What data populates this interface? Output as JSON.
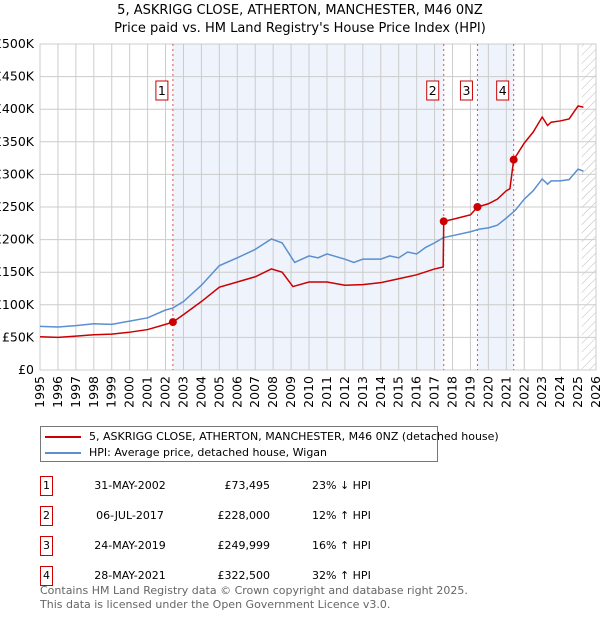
{
  "chart_data": {
    "type": "line",
    "title": "5, ASKRIGG CLOSE, ATHERTON, MANCHESTER, M46 0NZ",
    "subtitle": "Price paid vs. HM Land Registry's House Price Index (HPI)",
    "xlim": [
      1995,
      2026
    ],
    "ylim": [
      0,
      500000
    ],
    "x_ticks": [
      "1995",
      "1996",
      "1997",
      "1998",
      "1999",
      "2000",
      "2001",
      "2002",
      "2003",
      "2004",
      "2005",
      "2006",
      "2007",
      "2008",
      "2009",
      "2010",
      "2011",
      "2012",
      "2013",
      "2014",
      "2015",
      "2016",
      "2017",
      "2018",
      "2019",
      "2020",
      "2021",
      "2022",
      "2023",
      "2024",
      "2025",
      "2026"
    ],
    "y_ticks": [
      {
        "v": 0,
        "label": "£0"
      },
      {
        "v": 50000,
        "label": "£50K"
      },
      {
        "v": 100000,
        "label": "£100K"
      },
      {
        "v": 150000,
        "label": "£150K"
      },
      {
        "v": 200000,
        "label": "£200K"
      },
      {
        "v": 250000,
        "label": "£250K"
      },
      {
        "v": 300000,
        "label": "£300K"
      },
      {
        "v": 350000,
        "label": "£350K"
      },
      {
        "v": 400000,
        "label": "£400K"
      },
      {
        "v": 450000,
        "label": "£450K"
      },
      {
        "v": 500000,
        "label": "£500K"
      }
    ],
    "grid": true,
    "shaded_periods": [
      [
        2002.41,
        2017.51
      ],
      [
        2019.39,
        2021.41
      ]
    ],
    "forecast_hatch_from": 2025.2,
    "series": [
      {
        "name": "5, ASKRIGG CLOSE, ATHERTON, MANCHESTER, M46 0NZ (detached house)",
        "color": "#cc0000",
        "x": [
          1995,
          1996,
          1997,
          1998,
          1999,
          2000,
          2001,
          2002,
          2002.41,
          2003,
          2004,
          2005,
          2006,
          2007,
          2007.9,
          2008.5,
          2009.1,
          2010,
          2011,
          2012,
          2013,
          2014,
          2015,
          2016,
          2017,
          2017.48,
          2017.51,
          2018,
          2019,
          2019.39,
          2020,
          2020.5,
          2021,
          2021.2,
          2021.41,
          2022,
          2022.5,
          2023,
          2023.3,
          2023.5,
          2024,
          2024.5,
          2025,
          2025.3
        ],
        "y": [
          51000,
          50000,
          52000,
          54000,
          55000,
          58000,
          62000,
          70000,
          73495,
          85000,
          105000,
          127000,
          135000,
          143000,
          155000,
          150000,
          128000,
          135000,
          135000,
          130000,
          131000,
          134000,
          140000,
          146000,
          155000,
          158000,
          228000,
          231000,
          238000,
          249999,
          255000,
          262000,
          275000,
          278000,
          322500,
          348000,
          365000,
          388000,
          375000,
          380000,
          382000,
          385000,
          405000,
          403000
        ]
      },
      {
        "name": "HPI: Average price, detached house, Wigan",
        "color": "#5b8fd0",
        "x": [
          1995,
          1996,
          1997,
          1998,
          1999,
          2000,
          2001,
          2002,
          2002.4,
          2003,
          2004,
          2005,
          2006,
          2007,
          2007.9,
          2008.5,
          2009.2,
          2010,
          2010.5,
          2011,
          2012,
          2012.5,
          2013,
          2014,
          2014.5,
          2015,
          2015.5,
          2016,
          2016.5,
          2017,
          2017.5,
          2018,
          2019,
          2019.5,
          2020,
          2020.5,
          2021,
          2021.5,
          2022,
          2022.5,
          2023,
          2023.3,
          2023.5,
          2024,
          2024.5,
          2025,
          2025.3
        ],
        "y": [
          67000,
          66000,
          68000,
          71000,
          70000,
          75000,
          80000,
          92000,
          95000,
          105000,
          130000,
          160000,
          172000,
          185000,
          201000,
          195000,
          165000,
          175000,
          172000,
          178000,
          170000,
          165000,
          170000,
          170000,
          175000,
          172000,
          181000,
          178000,
          188000,
          195000,
          203000,
          206000,
          212000,
          216000,
          218000,
          222000,
          233000,
          245000,
          262000,
          275000,
          293000,
          285000,
          290000,
          290000,
          292000,
          308000,
          305000
        ]
      }
    ],
    "sales": [
      {
        "n": "1",
        "date": "31-MAY-2002",
        "price": "£73,495",
        "hpi": "23% ↓ HPI",
        "x": 2002.41,
        "y": 73495
      },
      {
        "n": "2",
        "date": "06-JUL-2017",
        "price": "£228,000",
        "hpi": "12% ↑ HPI",
        "x": 2017.51,
        "y": 228000
      },
      {
        "n": "3",
        "date": "24-MAY-2019",
        "price": "£249,999",
        "hpi": "16% ↑ HPI",
        "x": 2019.39,
        "y": 249999
      },
      {
        "n": "4",
        "date": "28-MAY-2021",
        "price": "£322,500",
        "hpi": "32% ↑ HPI",
        "x": 2021.41,
        "y": 322500
      }
    ]
  },
  "legend": {
    "property": "5, ASKRIGG CLOSE, ATHERTON, MANCHESTER, M46 0NZ (detached house)",
    "hpi": "HPI: Average price, detached house, Wigan"
  },
  "footer": {
    "line1": "Contains HM Land Registry data © Crown copyright and database right 2025.",
    "line2": "This data is licensed under the Open Government Licence v3.0."
  }
}
